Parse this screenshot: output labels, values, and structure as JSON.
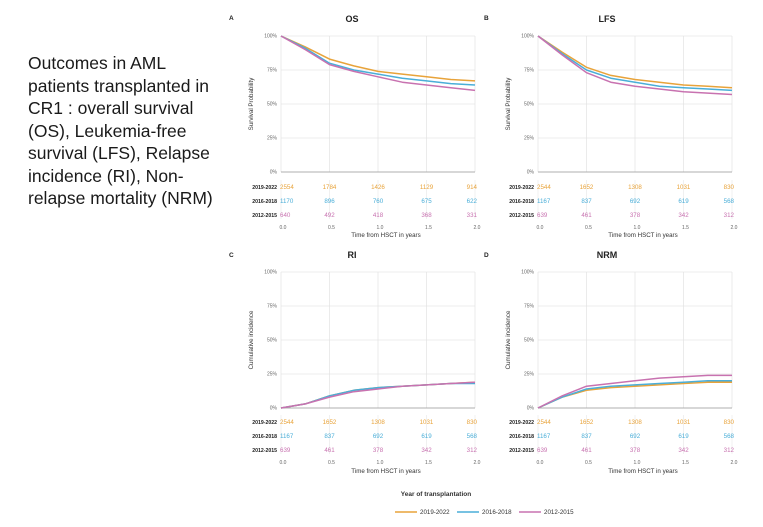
{
  "caption": "Outcomes in AML patients transplanted in CR1 : overall survival (OS), Leukemia-free survival (LFS), Relapse incidence (RI), Non-relapse mortality (NRM)",
  "legend": {
    "title": "Year of transplantation",
    "entries": [
      {
        "label": "2019-2022",
        "color": "#E8A33A"
      },
      {
        "label": "2016-2018",
        "color": "#4AAED8"
      },
      {
        "label": "2012-2015",
        "color": "#C872B0"
      }
    ]
  },
  "chart_data": [
    {
      "type": "line",
      "panel": "A",
      "title": "OS",
      "xlabel": "Time from HSCT in years",
      "ylabel": "Survival Probability",
      "xlim": [
        0,
        2
      ],
      "ylim": [
        0,
        100
      ],
      "x_ticks": [
        "0.0",
        "0.5",
        "1.0",
        "1.5",
        "2.0"
      ],
      "y_ticks": [
        "0%",
        "25%",
        "50%",
        "75%",
        "100%"
      ],
      "grid": true,
      "x": [
        0,
        0.25,
        0.5,
        0.75,
        1.0,
        1.25,
        1.5,
        1.75,
        2.0
      ],
      "series": [
        {
          "name": "2019-2022",
          "color": "#E8A33A",
          "values": [
            100,
            92,
            83,
            78,
            74,
            72,
            70,
            68,
            67
          ]
        },
        {
          "name": "2016-2018",
          "color": "#4AAED8",
          "values": [
            100,
            91,
            80,
            75,
            72,
            69,
            67,
            65,
            64
          ]
        },
        {
          "name": "2012-2015",
          "color": "#C872B0",
          "values": [
            100,
            90,
            79,
            74,
            70,
            66,
            64,
            62,
            60
          ]
        }
      ],
      "risk_table": {
        "times": [
          "0.0",
          "0.5",
          "1.0",
          "1.5",
          "2.0"
        ],
        "rows": [
          {
            "label": "2019-2022",
            "values": [
              "2554",
              "1784",
              "1426",
              "1129",
              "914"
            ]
          },
          {
            "label": "2016-2018",
            "values": [
              "1170",
              "896",
              "760",
              "675",
              "622"
            ]
          },
          {
            "label": "2012-2015",
            "values": [
              "640",
              "492",
              "418",
              "368",
              "331"
            ]
          }
        ]
      }
    },
    {
      "type": "line",
      "panel": "B",
      "title": "LFS",
      "xlabel": "Time from HSCT in years",
      "ylabel": "Survival Probability",
      "xlim": [
        0,
        2
      ],
      "ylim": [
        0,
        100
      ],
      "x_ticks": [
        "0.0",
        "0.5",
        "1.0",
        "1.5",
        "2.0"
      ],
      "y_ticks": [
        "0%",
        "25%",
        "50%",
        "75%",
        "100%"
      ],
      "grid": true,
      "x": [
        0,
        0.25,
        0.5,
        0.75,
        1.0,
        1.25,
        1.5,
        1.75,
        2.0
      ],
      "series": [
        {
          "name": "2019-2022",
          "color": "#E8A33A",
          "values": [
            100,
            88,
            77,
            71,
            68,
            66,
            64,
            63,
            62
          ]
        },
        {
          "name": "2016-2018",
          "color": "#4AAED8",
          "values": [
            100,
            87,
            75,
            69,
            66,
            63,
            62,
            61,
            60
          ]
        },
        {
          "name": "2012-2015",
          "color": "#C872B0",
          "values": [
            100,
            86,
            73,
            66,
            63,
            61,
            59,
            58,
            57
          ]
        }
      ],
      "risk_table": {
        "times": [
          "0.0",
          "0.5",
          "1.0",
          "1.5",
          "2.0"
        ],
        "rows": [
          {
            "label": "2019-2022",
            "values": [
              "2544",
              "1652",
              "1308",
              "1031",
              "830"
            ]
          },
          {
            "label": "2016-2018",
            "values": [
              "1167",
              "837",
              "692",
              "619",
              "568"
            ]
          },
          {
            "label": "2012-2015",
            "values": [
              "639",
              "461",
              "378",
              "342",
              "312"
            ]
          }
        ]
      }
    },
    {
      "type": "line",
      "panel": "C",
      "title": "RI",
      "xlabel": "Time from HSCT in years",
      "ylabel": "Cumulative incidence",
      "xlim": [
        0,
        2
      ],
      "ylim": [
        0,
        100
      ],
      "x_ticks": [
        "0.0",
        "0.5",
        "1.0",
        "1.5",
        "2.0"
      ],
      "y_ticks": [
        "0%",
        "25%",
        "50%",
        "75%",
        "100%"
      ],
      "grid": true,
      "x": [
        0,
        0.25,
        0.5,
        0.75,
        1.0,
        1.25,
        1.5,
        1.75,
        2.0
      ],
      "series": [
        {
          "name": "2019-2022",
          "color": "#E8A33A",
          "values": [
            0,
            3,
            9,
            13,
            15,
            16,
            17,
            18,
            19
          ]
        },
        {
          "name": "2016-2018",
          "color": "#4AAED8",
          "values": [
            0,
            3,
            9,
            13,
            15,
            16,
            17,
            18,
            18
          ]
        },
        {
          "name": "2012-2015",
          "color": "#C872B0",
          "values": [
            0,
            3,
            8,
            12,
            14,
            16,
            17,
            18,
            19
          ]
        }
      ],
      "risk_table": {
        "times": [
          "0.0",
          "0.5",
          "1.0",
          "1.5",
          "2.0"
        ],
        "rows": [
          {
            "label": "2019-2022",
            "values": [
              "2544",
              "1652",
              "1308",
              "1031",
              "830"
            ]
          },
          {
            "label": "2016-2018",
            "values": [
              "1167",
              "837",
              "692",
              "619",
              "568"
            ]
          },
          {
            "label": "2012-2015",
            "values": [
              "639",
              "461",
              "378",
              "342",
              "312"
            ]
          }
        ]
      }
    },
    {
      "type": "line",
      "panel": "D",
      "title": "NRM",
      "xlabel": "Time from HSCT in years",
      "ylabel": "Cumulative incidence",
      "xlim": [
        0,
        2
      ],
      "ylim": [
        0,
        100
      ],
      "x_ticks": [
        "0.0",
        "0.5",
        "1.0",
        "1.5",
        "2.0"
      ],
      "y_ticks": [
        "0%",
        "25%",
        "50%",
        "75%",
        "100%"
      ],
      "grid": true,
      "x": [
        0,
        0.25,
        0.5,
        0.75,
        1.0,
        1.25,
        1.5,
        1.75,
        2.0
      ],
      "series": [
        {
          "name": "2019-2022",
          "color": "#E8A33A",
          "values": [
            0,
            8,
            13,
            15,
            16,
            17,
            18,
            19,
            19
          ]
        },
        {
          "name": "2016-2018",
          "color": "#4AAED8",
          "values": [
            0,
            8,
            14,
            16,
            17,
            18,
            19,
            20,
            20
          ]
        },
        {
          "name": "2012-2015",
          "color": "#C872B0",
          "values": [
            0,
            9,
            16,
            18,
            20,
            22,
            23,
            24,
            24
          ]
        }
      ],
      "risk_table": {
        "times": [
          "0.0",
          "0.5",
          "1.0",
          "1.5",
          "2.0"
        ],
        "rows": [
          {
            "label": "2019-2022",
            "values": [
              "2544",
              "1652",
              "1308",
              "1031",
              "830"
            ]
          },
          {
            "label": "2016-2018",
            "values": [
              "1167",
              "837",
              "692",
              "619",
              "568"
            ]
          },
          {
            "label": "2012-2015",
            "values": [
              "639",
              "461",
              "378",
              "342",
              "312"
            ]
          }
        ]
      }
    }
  ]
}
